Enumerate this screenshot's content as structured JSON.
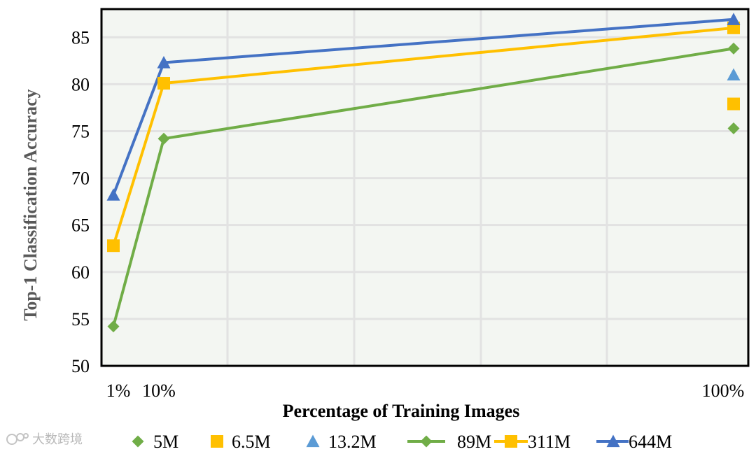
{
  "watermark": {
    "text": "大数跨境"
  },
  "colors": {
    "plot_bg": "#f3f6f2",
    "grid": "#e2e2e2",
    "frame": "#000000",
    "ylabel": "#595959",
    "series_5M": "#70ad47",
    "series_6_5M": "#ffc000",
    "series_13_2M": "#5b9bd5",
    "series_89M": "#70ad47",
    "series_311M": "#ffc000",
    "series_644M": "#4472c4"
  },
  "chart_data": {
    "type": "line",
    "title": "",
    "xlabel": "Percentage of Training Images",
    "ylabel": "Top-1 Classification Accuracy",
    "x_tick_labels": [
      "1%",
      "10%",
      "100%"
    ],
    "x": [
      1,
      10,
      100
    ],
    "ylim": [
      50,
      88
    ],
    "y_ticks": [
      50,
      55,
      60,
      65,
      70,
      75,
      80,
      85
    ],
    "grid": true,
    "legend_position": "bottom",
    "series": [
      {
        "name": "5M",
        "kind": "marker",
        "marker": "diamond",
        "color": "#70ad47",
        "x": [
          100
        ],
        "values": [
          75.3
        ]
      },
      {
        "name": "6.5M",
        "kind": "marker",
        "marker": "square",
        "color": "#ffc000",
        "x": [
          100
        ],
        "values": [
          77.9
        ]
      },
      {
        "name": "13.2M",
        "kind": "marker",
        "marker": "triangle",
        "color": "#5b9bd5",
        "x": [
          100
        ],
        "values": [
          81.0
        ]
      },
      {
        "name": "89M",
        "kind": "line",
        "marker": "diamond",
        "color": "#70ad47",
        "x": [
          1,
          10,
          100
        ],
        "values": [
          54.2,
          74.2,
          83.8
        ]
      },
      {
        "name": "311M",
        "kind": "line",
        "marker": "square",
        "color": "#ffc000",
        "x": [
          1,
          10,
          100
        ],
        "values": [
          62.8,
          80.1,
          86.0
        ]
      },
      {
        "name": "644M",
        "kind": "line",
        "marker": "triangle",
        "color": "#4472c4",
        "x": [
          1,
          10,
          100
        ],
        "values": [
          68.2,
          82.3,
          86.9
        ]
      }
    ]
  }
}
